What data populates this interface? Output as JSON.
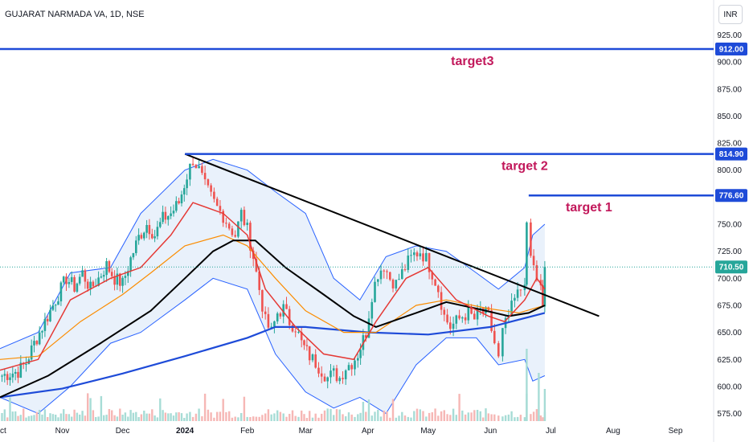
{
  "header": {
    "symbol_line": "GUJARAT NARMADA VA, 1D, NSE",
    "currency": "INR"
  },
  "colors": {
    "up_candle": "#26a69a",
    "down_candle": "#ef5350",
    "ema_fast": "#e53935",
    "ema_mid": "#fb8c00",
    "sma_black": "#000000",
    "sma_long": "#1e4bd8",
    "bollinger": "#2962ff",
    "bollinger_fill": "#e9f1fb",
    "target_line": "#1e4bd8",
    "trendline": "#000000",
    "price_tag": "#1e4bd8",
    "last_price_tag": "#26a69a"
  },
  "chart_data": {
    "type": "candlestick",
    "title": "GUJARAT NARMADA VA, 1D, NSE",
    "currency": "INR",
    "y_ticks": [
      575,
      600,
      625,
      650,
      675,
      700,
      725,
      750,
      775,
      800,
      825,
      850,
      875,
      900,
      925
    ],
    "y_tick_labels": [
      "575.00",
      "600.00",
      "625.00",
      "650.00",
      "675.00",
      "700.00",
      "725.00",
      "750.00",
      "775.00",
      "800.00",
      "825.00",
      "850.00",
      "875.00",
      "900.00",
      "925.00"
    ],
    "ylim": [
      568,
      935
    ],
    "x_ticks": [
      "Oct",
      "Nov",
      "Dec",
      "2024",
      "Feb",
      "Mar",
      "Apr",
      "May",
      "Jun",
      "Jul",
      "Aug",
      "Sep"
    ],
    "x_range": [
      "2023-10-01",
      "2024-09-20"
    ],
    "tick_dates": [
      "2023-10-01",
      "2023-11-01",
      "2023-12-01",
      "2024-01-01",
      "2024-02-01",
      "2024-03-01",
      "2024-04-01",
      "2024-05-01",
      "2024-06-01",
      "2024-07-01",
      "2024-08-01",
      "2024-09-01"
    ],
    "close_path": [
      [
        "2023-10-02",
        610
      ],
      [
        "2023-10-06",
        612
      ],
      [
        "2023-10-10",
        614
      ],
      [
        "2023-10-14",
        622
      ],
      [
        "2023-10-18",
        640
      ],
      [
        "2023-10-22",
        655
      ],
      [
        "2023-10-26",
        670
      ],
      [
        "2023-10-30",
        685
      ],
      [
        "2023-11-03",
        700
      ],
      [
        "2023-11-07",
        692
      ],
      [
        "2023-11-11",
        705
      ],
      [
        "2023-11-15",
        690
      ],
      [
        "2023-11-19",
        700
      ],
      [
        "2023-11-23",
        712
      ],
      [
        "2023-11-27",
        700
      ],
      [
        "2023-12-01",
        695
      ],
      [
        "2023-12-05",
        718
      ],
      [
        "2023-12-09",
        738
      ],
      [
        "2023-12-13",
        750
      ],
      [
        "2023-12-17",
        740
      ],
      [
        "2023-12-21",
        755
      ],
      [
        "2023-12-25",
        760
      ],
      [
        "2023-12-29",
        770
      ],
      [
        "2024-01-02",
        795
      ],
      [
        "2024-01-05",
        810
      ],
      [
        "2024-01-08",
        800
      ],
      [
        "2024-01-11",
        785
      ],
      [
        "2024-01-14",
        775
      ],
      [
        "2024-01-17",
        765
      ],
      [
        "2024-01-20",
        758
      ],
      [
        "2024-01-23",
        748
      ],
      [
        "2024-01-26",
        740
      ],
      [
        "2024-01-29",
        760
      ],
      [
        "2024-02-01",
        745
      ],
      [
        "2024-02-04",
        720
      ],
      [
        "2024-02-07",
        690
      ],
      [
        "2024-02-10",
        660
      ],
      [
        "2024-02-13",
        650
      ],
      [
        "2024-02-16",
        668
      ],
      [
        "2024-02-19",
        672
      ],
      [
        "2024-02-22",
        660
      ],
      [
        "2024-02-25",
        655
      ],
      [
        "2024-02-28",
        640
      ],
      [
        "2024-03-03",
        628
      ],
      [
        "2024-03-06",
        622
      ],
      [
        "2024-03-09",
        615
      ],
      [
        "2024-03-12",
        608
      ],
      [
        "2024-03-15",
        612
      ],
      [
        "2024-03-18",
        608
      ],
      [
        "2024-03-21",
        618
      ],
      [
        "2024-03-24",
        622
      ],
      [
        "2024-03-27",
        630
      ],
      [
        "2024-03-31",
        650
      ],
      [
        "2024-04-03",
        685
      ],
      [
        "2024-04-06",
        705
      ],
      [
        "2024-04-09",
        712
      ],
      [
        "2024-04-12",
        700
      ],
      [
        "2024-04-15",
        695
      ],
      [
        "2024-04-18",
        705
      ],
      [
        "2024-04-21",
        715
      ],
      [
        "2024-04-24",
        722
      ],
      [
        "2024-04-27",
        725
      ],
      [
        "2024-04-30",
        718
      ],
      [
        "2024-05-03",
        705
      ],
      [
        "2024-05-06",
        690
      ],
      [
        "2024-05-09",
        665
      ],
      [
        "2024-05-12",
        655
      ],
      [
        "2024-05-15",
        660
      ],
      [
        "2024-05-18",
        665
      ],
      [
        "2024-05-21",
        668
      ],
      [
        "2024-05-24",
        662
      ],
      [
        "2024-05-27",
        670
      ],
      [
        "2024-05-31",
        665
      ],
      [
        "2024-06-03",
        640
      ],
      [
        "2024-06-05",
        625
      ],
      [
        "2024-06-07",
        650
      ],
      [
        "2024-06-10",
        665
      ],
      [
        "2024-06-13",
        680
      ],
      [
        "2024-06-16",
        690
      ],
      [
        "2024-06-18",
        700
      ],
      [
        "2024-06-19",
        745
      ],
      [
        "2024-06-21",
        720
      ],
      [
        "2024-06-24",
        700
      ],
      [
        "2024-06-26",
        690
      ],
      [
        "2024-06-27",
        670
      ],
      [
        "2024-06-28",
        710.5
      ]
    ],
    "ema_fast": [
      [
        "2023-10-01",
        615
      ],
      [
        "2023-10-20",
        625
      ],
      [
        "2023-11-05",
        680
      ],
      [
        "2023-11-25",
        700
      ],
      [
        "2023-12-10",
        710
      ],
      [
        "2023-12-25",
        740
      ],
      [
        "2024-01-05",
        770
      ],
      [
        "2024-01-20",
        760
      ],
      [
        "2024-02-01",
        740
      ],
      [
        "2024-02-10",
        690
      ],
      [
        "2024-02-25",
        655
      ],
      [
        "2024-03-10",
        630
      ],
      [
        "2024-03-25",
        625
      ],
      [
        "2024-04-05",
        660
      ],
      [
        "2024-04-20",
        700
      ],
      [
        "2024-05-01",
        710
      ],
      [
        "2024-05-15",
        680
      ],
      [
        "2024-05-31",
        665
      ],
      [
        "2024-06-08",
        660
      ],
      [
        "2024-06-18",
        680
      ],
      [
        "2024-06-24",
        700
      ],
      [
        "2024-06-28",
        690
      ]
    ],
    "ema_mid": [
      [
        "2023-10-01",
        625
      ],
      [
        "2023-10-20",
        628
      ],
      [
        "2023-11-10",
        660
      ],
      [
        "2023-12-01",
        685
      ],
      [
        "2023-12-15",
        705
      ],
      [
        "2024-01-01",
        730
      ],
      [
        "2024-01-20",
        740
      ],
      [
        "2024-02-01",
        730
      ],
      [
        "2024-02-15",
        700
      ],
      [
        "2024-03-01",
        670
      ],
      [
        "2024-03-20",
        650
      ],
      [
        "2024-04-05",
        650
      ],
      [
        "2024-04-25",
        675
      ],
      [
        "2024-05-10",
        680
      ],
      [
        "2024-05-31",
        672
      ],
      [
        "2024-06-15",
        668
      ],
      [
        "2024-06-28",
        675
      ]
    ],
    "sma_black": [
      [
        "2023-10-01",
        590
      ],
      [
        "2023-10-25",
        610
      ],
      [
        "2023-11-20",
        640
      ],
      [
        "2023-12-15",
        670
      ],
      [
        "2024-01-01",
        700
      ],
      [
        "2024-01-15",
        725
      ],
      [
        "2024-01-25",
        735
      ],
      [
        "2024-02-05",
        735
      ],
      [
        "2024-02-20",
        710
      ],
      [
        "2024-03-10",
        685
      ],
      [
        "2024-03-25",
        665
      ],
      [
        "2024-04-05",
        655
      ],
      [
        "2024-04-25",
        668
      ],
      [
        "2024-05-10",
        678
      ],
      [
        "2024-05-25",
        672
      ],
      [
        "2024-06-10",
        665
      ],
      [
        "2024-06-20",
        668
      ],
      [
        "2024-06-28",
        675
      ]
    ],
    "sma_long": [
      [
        "2023-10-01",
        590
      ],
      [
        "2023-11-01",
        598
      ],
      [
        "2023-12-01",
        612
      ],
      [
        "2024-01-01",
        628
      ],
      [
        "2024-02-01",
        645
      ],
      [
        "2024-02-15",
        655
      ],
      [
        "2024-03-01",
        655
      ],
      [
        "2024-04-01",
        650
      ],
      [
        "2024-05-01",
        648
      ],
      [
        "2024-06-01",
        655
      ],
      [
        "2024-06-28",
        668
      ]
    ],
    "bb_upper": [
      [
        "2023-10-01",
        635
      ],
      [
        "2023-10-20",
        650
      ],
      [
        "2023-11-05",
        705
      ],
      [
        "2023-11-25",
        710
      ],
      [
        "2023-12-10",
        760
      ],
      [
        "2024-01-01",
        800
      ],
      [
        "2024-01-15",
        810
      ],
      [
        "2024-02-01",
        800
      ],
      [
        "2024-02-15",
        780
      ],
      [
        "2024-03-01",
        760
      ],
      [
        "2024-03-15",
        700
      ],
      [
        "2024-03-28",
        680
      ],
      [
        "2024-04-10",
        720
      ],
      [
        "2024-04-25",
        730
      ],
      [
        "2024-05-10",
        725
      ],
      [
        "2024-05-25",
        705
      ],
      [
        "2024-06-05",
        690
      ],
      [
        "2024-06-18",
        710
      ],
      [
        "2024-06-22",
        740
      ],
      [
        "2024-06-28",
        750
      ]
    ],
    "bb_lower": [
      [
        "2023-10-01",
        590
      ],
      [
        "2023-10-20",
        575
      ],
      [
        "2023-11-05",
        600
      ],
      [
        "2023-11-25",
        640
      ],
      [
        "2023-12-10",
        650
      ],
      [
        "2024-01-01",
        680
      ],
      [
        "2024-01-15",
        700
      ],
      [
        "2024-02-01",
        690
      ],
      [
        "2024-02-15",
        630
      ],
      [
        "2024-03-01",
        595
      ],
      [
        "2024-03-15",
        580
      ],
      [
        "2024-03-28",
        590
      ],
      [
        "2024-04-10",
        575
      ],
      [
        "2024-04-25",
        620
      ],
      [
        "2024-05-10",
        645
      ],
      [
        "2024-05-25",
        645
      ],
      [
        "2024-06-05",
        620
      ],
      [
        "2024-06-18",
        625
      ],
      [
        "2024-06-22",
        605
      ],
      [
        "2024-06-28",
        610
      ]
    ],
    "trendline": {
      "start": [
        "2024-01-01",
        815
      ],
      "end": [
        "2024-07-25",
        665
      ]
    },
    "target_lines": [
      {
        "label": "target3",
        "value": 912,
        "start": "2023-10-01",
        "text_at": "2024-05-23"
      },
      {
        "label": "target 2",
        "value": 814.9,
        "start": "2024-01-01",
        "text_at": "2024-06-18"
      },
      {
        "label": "target 1",
        "value": 776.6,
        "start": "2024-06-20",
        "text_at": "2024-07-20"
      }
    ],
    "price_tags": [
      {
        "value": 912,
        "label": "912.00",
        "kind": "target"
      },
      {
        "value": 814.9,
        "label": "814.90",
        "kind": "target"
      },
      {
        "value": 776.6,
        "label": "776.60",
        "kind": "target"
      },
      {
        "value": 710.5,
        "label": "710.50",
        "kind": "last"
      }
    ],
    "last_price": 710.5
  }
}
